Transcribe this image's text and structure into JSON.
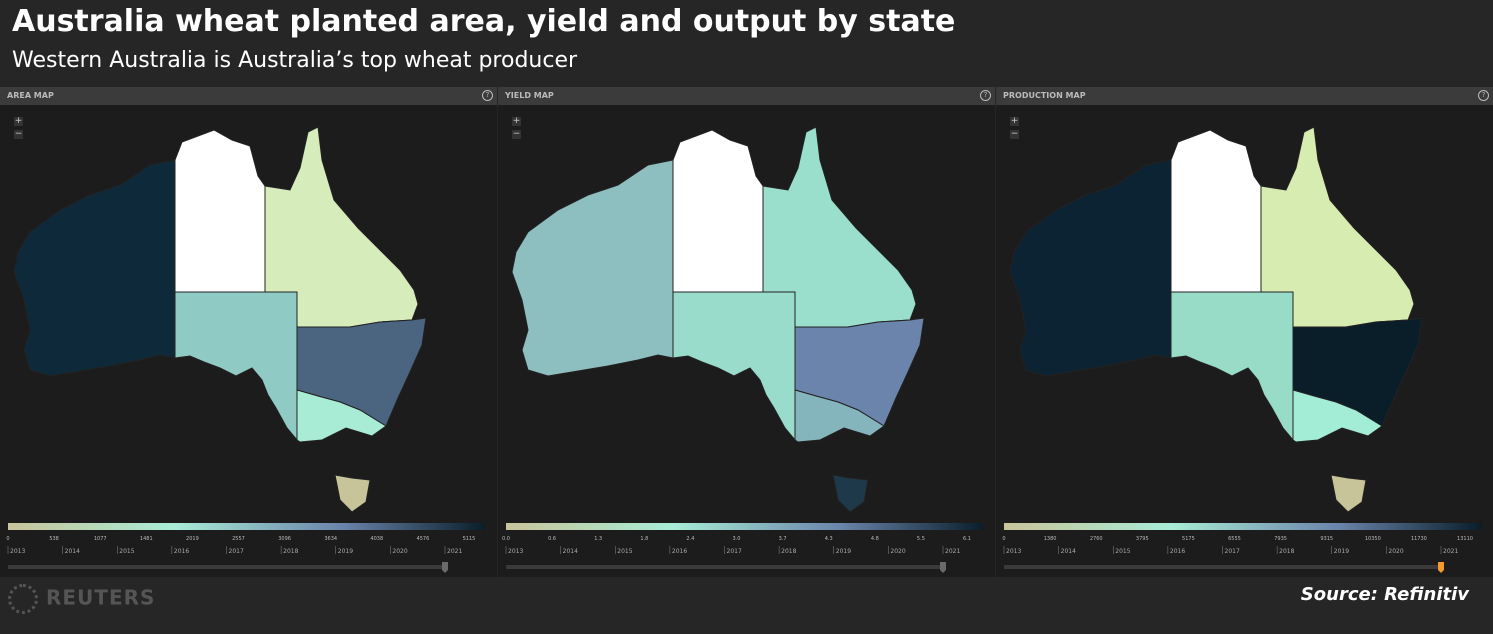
{
  "header": {
    "title": "Australia wheat planted area, yield and output by state",
    "subtitle": "Western Australia is Australia’s top wheat producer"
  },
  "years": [
    "2013",
    "2014",
    "2015",
    "2016",
    "2017",
    "2018",
    "2019",
    "2020",
    "2021"
  ],
  "panels": [
    {
      "title": "AREA MAP",
      "fills": [
        "#0e2a3a",
        "#ffffff",
        "#d6ecbb",
        "#8fcbc4",
        "#4b6580",
        "#a8ecd6",
        "#c8c49a"
      ],
      "handle_color": "#6a6a6a",
      "legend": [
        "0",
        "538",
        "1077",
        "1481",
        "2019",
        "2557",
        "3096",
        "3634",
        "4038",
        "4576",
        "5115"
      ]
    },
    {
      "title": "YIELD MAP",
      "fills": [
        "#8ebfc0",
        "#ffffff",
        "#9adecc",
        "#9adccc",
        "#6a84ab",
        "#85b5bc",
        "#1e3a4a"
      ],
      "handle_color": "#6a6a6a",
      "legend": [
        "0.0",
        "0.6",
        "1.3",
        "1.8",
        "2.4",
        "3.0",
        "3.7",
        "4.3",
        "4.8",
        "5.5",
        "6.1"
      ]
    },
    {
      "title": "PRODUCTION MAP",
      "fills": [
        "#0c2333",
        "#ffffff",
        "#d6ecb0",
        "#98dcc8",
        "#0a1e2a",
        "#a3ecd6",
        "#c8c49a"
      ],
      "handle_color": "#f39a2e",
      "legend": [
        "0",
        "1380",
        "2760",
        "3795",
        "5175",
        "6555",
        "7935",
        "9315",
        "10350",
        "11730",
        "13110"
      ]
    }
  ],
  "footer": {
    "logo": "REUTERS",
    "source": "Source: Refinitiv"
  }
}
